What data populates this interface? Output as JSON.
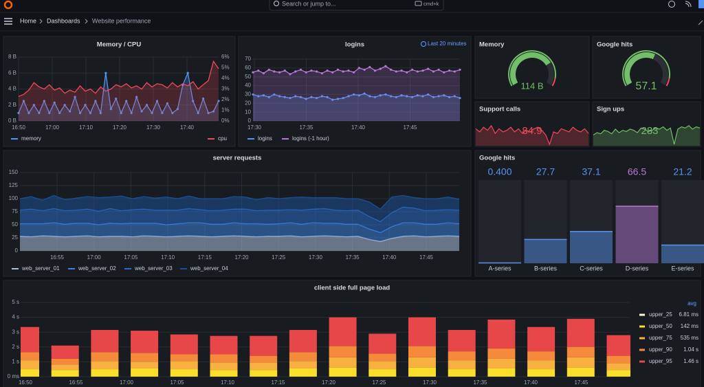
{
  "topbar": {
    "search": "Search or jump to...",
    "shortcut": "cmd+k"
  },
  "breadcrumb": [
    "Home",
    "Dashboards",
    "Website performance"
  ],
  "panels": [
    {
      "type": "timeseries",
      "title": "Memory / CPU",
      "xticks": [
        "16:50",
        "17:00",
        "17:10",
        "17:20",
        "17:30",
        "17:40"
      ],
      "ylim": [
        0,
        8
      ],
      "yticks": [
        {
          "value": 0,
          "label": "0 B"
        },
        {
          "value": 2,
          "label": "2 B"
        },
        {
          "value": 4,
          "label": "4 B"
        },
        {
          "value": 6,
          "label": "6 B"
        },
        {
          "value": 8,
          "label": "8 B"
        }
      ],
      "y2lim": [
        0,
        6
      ],
      "y2ticks": [
        {
          "value": 0,
          "label": "0%"
        },
        {
          "value": 1,
          "label": "1%"
        },
        {
          "value": 2,
          "label": "2%"
        },
        {
          "value": 3,
          "label": "3%"
        },
        {
          "value": 4,
          "label": "4%"
        },
        {
          "value": 5,
          "label": "5%"
        },
        {
          "value": 6,
          "label": "6%"
        }
      ],
      "series": [
        {
          "name": "memory",
          "color": "#5794f2",
          "points": true,
          "values": [
            1,
            2.5,
            1,
            2,
            1,
            2.5,
            1,
            2.3,
            1,
            2,
            1.2,
            3,
            1,
            2,
            1,
            2.5,
            1,
            6,
            1.5,
            2.8,
            1,
            2.5,
            1,
            3,
            1.2,
            2,
            1,
            2.5,
            1,
            2.2,
            1,
            1.5,
            4.5,
            6,
            2.5,
            1,
            2.8,
            1,
            1.2,
            2.5
          ]
        },
        {
          "name": "cpu",
          "color": "#f2495c",
          "axis": "y2",
          "values": [
            2.3,
            2.5,
            2.9,
            3.6,
            3.2,
            3.0,
            3.4,
            2.9,
            3.1,
            2.6,
            2.9,
            2.7,
            3.3,
            2.8,
            3.0,
            2.6,
            3.2,
            2.8,
            3.0,
            3.4,
            3.2,
            3.5,
            3.1,
            3.3,
            3.0,
            3.6,
            3.2,
            3.5,
            3.4,
            3.1,
            3.6,
            3.2,
            3.5,
            3.3,
            3.7,
            3.0,
            3.4,
            3.8,
            5.6,
            4.9
          ]
        }
      ]
    },
    {
      "type": "timeseries",
      "title": "logins",
      "time_range": "Last 20 minutes",
      "xticks": [
        "17:30",
        "17:35",
        "17:40",
        "17:45"
      ],
      "ylim": [
        0,
        70
      ],
      "yticks": [
        0,
        10,
        20,
        30,
        40,
        50,
        60,
        70
      ],
      "series": [
        {
          "name": "logins",
          "color": "#5794f2",
          "points": true,
          "values": [
            30,
            28,
            29,
            27,
            30,
            28,
            27,
            26,
            28,
            27,
            25,
            27,
            26,
            28,
            27,
            24,
            25,
            26,
            28,
            30,
            29,
            31,
            28,
            27,
            29,
            30,
            28,
            27,
            29,
            28,
            27,
            29,
            28,
            30,
            27,
            28,
            29,
            27,
            28,
            26
          ]
        },
        {
          "name": "logins (-1 hour)",
          "color": "#b877d9",
          "points": true,
          "values": [
            55,
            57,
            54,
            58,
            56,
            55,
            57,
            53,
            56,
            58,
            55,
            57,
            56,
            54,
            57,
            55,
            58,
            56,
            57,
            55,
            60,
            58,
            61,
            57,
            59,
            62,
            58,
            56,
            57,
            55,
            58,
            56,
            57,
            59,
            56,
            58,
            55,
            57,
            56,
            58
          ]
        }
      ]
    },
    {
      "type": "gauge",
      "title": "Memory",
      "value": 114,
      "value_label": "114 B",
      "color": "#73bf69"
    },
    {
      "type": "gauge",
      "title": "Google hits",
      "value": 57.1,
      "color": "#73bf69"
    },
    {
      "type": "stat",
      "title": "Support calls",
      "value": 84.9,
      "color": "#f2495c",
      "sparkline": [
        88,
        86,
        89,
        87,
        90,
        85,
        88,
        86,
        87,
        89,
        86,
        88,
        85,
        87,
        86,
        88,
        89,
        87,
        84,
        78,
        86,
        85,
        88,
        87,
        86,
        89,
        87,
        86,
        88,
        85
      ]
    },
    {
      "type": "stat",
      "title": "Sign ups",
      "value": 283,
      "color": "#73bf69",
      "sparkline": [
        278,
        280,
        279,
        282,
        281,
        279,
        283,
        280,
        282,
        281,
        283,
        282,
        280,
        284,
        283,
        281,
        282,
        284,
        283,
        285,
        282,
        284,
        270,
        283,
        285,
        284,
        286,
        283,
        285,
        284
      ]
    },
    {
      "type": "timeseries",
      "title": "server requests",
      "stacked": true,
      "xticks": [
        "16:55",
        "17:00",
        "17:05",
        "17:10",
        "17:15",
        "17:20",
        "17:25",
        "17:30",
        "17:35",
        "17:40",
        "17:45"
      ],
      "ylim": [
        0,
        150
      ],
      "yticks": [
        0,
        25,
        50,
        75,
        100,
        125,
        150
      ],
      "series": [
        {
          "name": "web_server_01",
          "color": "#a9bfdc",
          "values": [
            28,
            27,
            29,
            28,
            27,
            28,
            29,
            27,
            28,
            28,
            27,
            29,
            28,
            27,
            28,
            29,
            28,
            27,
            28,
            29,
            28,
            27,
            28,
            28,
            29,
            27,
            28,
            29,
            28,
            27,
            28,
            22,
            18,
            24,
            28,
            29,
            27,
            28,
            29,
            28
          ]
        },
        {
          "name": "web_server_02",
          "color": "#3d7fd9",
          "values": [
            24,
            25,
            23,
            26,
            24,
            25,
            24,
            23,
            25,
            24,
            26,
            24,
            25,
            23,
            24,
            25,
            26,
            24,
            23,
            25,
            24,
            25,
            23,
            24,
            25,
            24,
            26,
            24,
            25,
            24,
            23,
            20,
            17,
            22,
            26,
            25,
            24,
            23,
            25,
            24
          ]
        },
        {
          "name": "web_server_03",
          "color": "#2a6bc4",
          "values": [
            26,
            28,
            25,
            27,
            26,
            25,
            27,
            26,
            28,
            25,
            26,
            27,
            25,
            28,
            26,
            27,
            25,
            26,
            27,
            26,
            28,
            25,
            27,
            26,
            25,
            27,
            26,
            28,
            25,
            26,
            27,
            24,
            21,
            27,
            30,
            28,
            26,
            27,
            25,
            26
          ]
        },
        {
          "name": "web_server_04",
          "color": "#1b4f94",
          "values": [
            22,
            24,
            20,
            25,
            21,
            23,
            24,
            26,
            22,
            28,
            21,
            24,
            23,
            25,
            22,
            24,
            21,
            23,
            22,
            24,
            23,
            21,
            24,
            22,
            23,
            25,
            22,
            21,
            24,
            23,
            22,
            28,
            24,
            30,
            22,
            20,
            23,
            22,
            24,
            21
          ]
        }
      ]
    },
    {
      "type": "bargauge",
      "title": "Google hits",
      "categories": [
        "A-series",
        "B-series",
        "C-series",
        "D-series",
        "E-series"
      ],
      "values": [
        0.4,
        27.7,
        37.1,
        66.5,
        21.2
      ],
      "value_labels": [
        "0.400",
        "27.7",
        "37.1",
        "66.5",
        "21.2"
      ],
      "colors": [
        "#5794f2",
        "#5794f2",
        "#5794f2",
        "#b877d9",
        "#5794f2"
      ]
    },
    {
      "type": "barchart",
      "stacked": true,
      "title": "client side full page load",
      "xticks": [
        "16:50",
        "16:55",
        "17:00",
        "17:05",
        "17:10",
        "17:15",
        "17:20",
        "17:25",
        "17:30",
        "17:35",
        "17:40",
        "17:45"
      ],
      "ylim": [
        0,
        5
      ],
      "yticks": [
        {
          "value": 0,
          "label": "0 ms"
        },
        {
          "value": 1,
          "label": "1 s"
        },
        {
          "value": 2,
          "label": "2 s"
        },
        {
          "value": 3,
          "label": "3 s"
        },
        {
          "value": 4,
          "label": "4 s"
        },
        {
          "value": 5,
          "label": "5 s"
        }
      ],
      "legend_header": "avg",
      "series": [
        {
          "name": "upper_25",
          "color": "#fff4d6",
          "avg": "6.81 ms",
          "values": [
            0.007,
            0.007,
            0.007,
            0.007,
            0.007,
            0.007,
            0.007,
            0.007,
            0.007,
            0.007,
            0.007,
            0.007,
            0.007,
            0.007,
            0.007,
            0.007
          ]
        },
        {
          "name": "upper_50",
          "color": "#fade2a",
          "avg": "142 ms",
          "values": [
            0.5,
            0.45,
            0.5,
            0.55,
            0.5,
            0.45,
            0.45,
            0.55,
            0.6,
            0.5,
            0.6,
            0.5,
            0.55,
            0.5,
            0.6,
            0.45
          ]
        },
        {
          "name": "upper_75",
          "color": "#f8b140",
          "avg": "535 ms",
          "values": [
            0.6,
            0.35,
            0.55,
            0.45,
            0.55,
            0.5,
            0.5,
            0.5,
            0.7,
            0.55,
            0.7,
            0.6,
            0.65,
            0.6,
            0.7,
            0.45
          ]
        },
        {
          "name": "upper_90",
          "color": "#f58a3a",
          "avg": "1.04 s",
          "values": [
            0.55,
            0.4,
            0.6,
            0.6,
            0.45,
            0.55,
            0.45,
            0.6,
            0.75,
            0.5,
            0.75,
            0.6,
            0.7,
            0.6,
            0.7,
            0.5
          ]
        },
        {
          "name": "upper_95",
          "color": "#e8474a",
          "avg": "1.46 s",
          "values": [
            1.69,
            0.89,
            1.49,
            1.49,
            1.34,
            1.24,
            1.34,
            1.49,
            1.94,
            1.34,
            1.94,
            1.44,
            1.94,
            1.64,
            1.89,
            1.39
          ]
        }
      ]
    }
  ]
}
